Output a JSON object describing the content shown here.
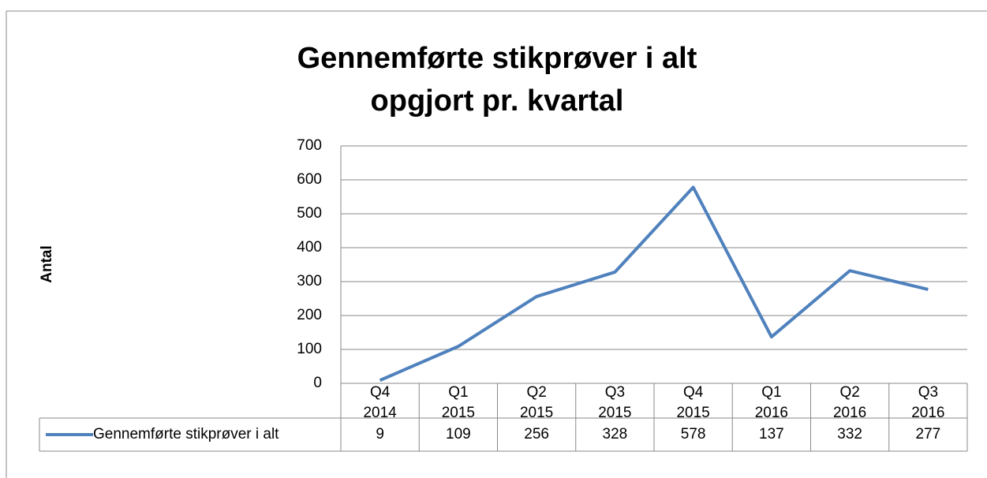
{
  "chart_data": {
    "type": "line",
    "title": [
      "Gennemførte stikprøver i alt",
      "opgjort pr. kvartal"
    ],
    "y_label": "Antal",
    "categories": [
      [
        "Q4",
        "2014"
      ],
      [
        "Q1",
        "2015"
      ],
      [
        "Q2",
        "2015"
      ],
      [
        "Q3",
        "2015"
      ],
      [
        "Q4",
        "2015"
      ],
      [
        "Q1",
        "2016"
      ],
      [
        "Q2",
        "2016"
      ],
      [
        "Q3",
        "2016"
      ]
    ],
    "series": [
      {
        "name": "Gennemførte stikprøver i alt",
        "color": "#4f81bd",
        "values": [
          9,
          109,
          256,
          328,
          578,
          137,
          332,
          277
        ]
      }
    ],
    "ylim": [
      0,
      700
    ],
    "yticks": [
      0,
      100,
      200,
      300,
      400,
      500,
      600,
      700
    ],
    "grid": true
  }
}
